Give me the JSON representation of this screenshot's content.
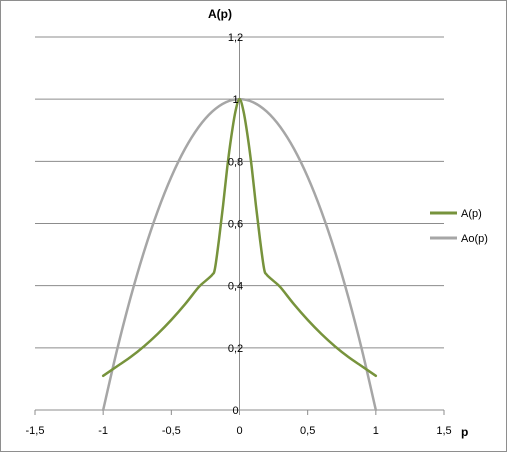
{
  "chart_data": {
    "type": "line",
    "title": "",
    "xlabel": "p",
    "ylabel": "A(p)",
    "xlim": [
      -1.5,
      1.5
    ],
    "ylim": [
      0,
      1.2
    ],
    "grid": true,
    "legend_position": "right",
    "x_ticks": [
      -1.5,
      -1,
      -0.5,
      0,
      0.5,
      1,
      1.5
    ],
    "x_tick_labels": [
      "-1,5",
      "-1",
      "-0,5",
      "0",
      "0,5",
      "1",
      "1,5"
    ],
    "y_ticks": [
      0,
      0.2,
      0.4,
      0.6,
      0.8,
      1,
      1.2
    ],
    "y_tick_labels": [
      "0",
      "0,2",
      "0,4",
      "0,6",
      "0,8",
      "1",
      "1,2"
    ],
    "series": [
      {
        "name": "A(p)",
        "color": "#77933c",
        "x": [
          -1,
          -0.9,
          -0.8,
          -0.7,
          -0.6,
          -0.5,
          -0.4,
          -0.3,
          -0.25,
          -0.2,
          -0.18,
          -0.15,
          -0.12,
          -0.09,
          -0.06,
          -0.03,
          0,
          0.03,
          0.06,
          0.09,
          0.12,
          0.15,
          0.18,
          0.2,
          0.25,
          0.3,
          0.4,
          0.5,
          0.6,
          0.7,
          0.8,
          0.9,
          1
        ],
        "y": [
          0.11,
          0.14,
          0.17,
          0.205,
          0.245,
          0.29,
          0.34,
          0.395,
          0.415,
          0.435,
          0.455,
          0.55,
          0.66,
          0.78,
          0.88,
          0.96,
          1.0,
          0.96,
          0.88,
          0.78,
          0.66,
          0.55,
          0.455,
          0.435,
          0.415,
          0.395,
          0.34,
          0.29,
          0.245,
          0.205,
          0.17,
          0.14,
          0.11
        ]
      },
      {
        "name": "Ao(p)",
        "color": "#a6a6a6",
        "x": [
          -1,
          -0.9,
          -0.8,
          -0.7,
          -0.6,
          -0.5,
          -0.4,
          -0.3,
          -0.2,
          -0.1,
          0,
          0.1,
          0.2,
          0.3,
          0.4,
          0.5,
          0.6,
          0.7,
          0.8,
          0.9,
          1
        ],
        "y": [
          0,
          0.19,
          0.36,
          0.51,
          0.64,
          0.75,
          0.84,
          0.91,
          0.96,
          0.99,
          1.0,
          0.99,
          0.96,
          0.91,
          0.84,
          0.75,
          0.64,
          0.51,
          0.36,
          0.19,
          0
        ]
      }
    ]
  }
}
